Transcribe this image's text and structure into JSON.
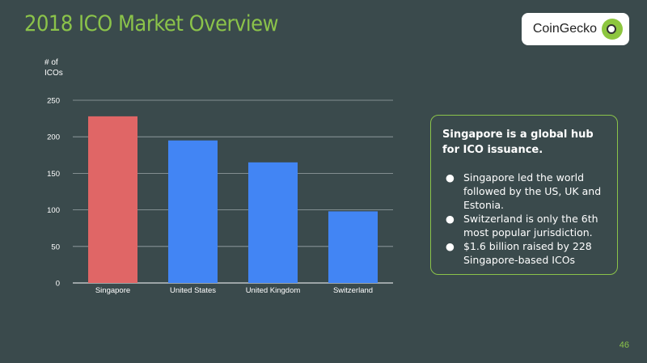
{
  "slide": {
    "title": "2018 ICO Market Overview",
    "logo_text": "CoinGecko",
    "page_number": "46"
  },
  "callout": {
    "heading": "Singapore is a global hub for ICO issuance.",
    "bullets": [
      "Singapore led the world followed by the US, UK and Estonia.",
      "Switzerland is only the 6th most popular jurisdiction.",
      "$1.6 billion raised by 228 Singapore-based ICOs"
    ]
  },
  "colors": {
    "background": "#3a4a4c",
    "accent": "#8bc34a",
    "highlight_bar": "#e06666",
    "bar": "#4285f4"
  },
  "chart_data": {
    "type": "bar",
    "ylabel": "# of ICOs",
    "xlabel": "",
    "categories": [
      "Singapore",
      "United States",
      "United Kingdom",
      "Switzerland"
    ],
    "values": [
      228,
      195,
      165,
      98
    ],
    "ylim": [
      0,
      250
    ],
    "yticks": [
      0,
      50,
      100,
      150,
      200,
      250
    ],
    "grid": true,
    "highlighted_category": "Singapore"
  }
}
